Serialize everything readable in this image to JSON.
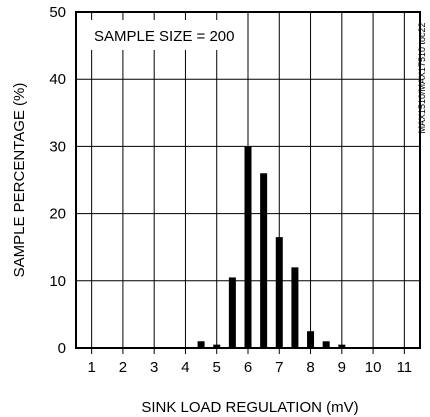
{
  "chart_data": {
    "type": "bar",
    "xlabel": "SINK LOAD REGULATION (mV)",
    "ylabel": "SAMPLE PERCENTAGE (%)",
    "annotation": "SAMPLE SIZE = 200",
    "side_label": "MAX1510/MAX17510 toc22",
    "xlim": [
      0.5,
      11.5
    ],
    "ylim": [
      0,
      50
    ],
    "xticks": [
      "1",
      "2",
      "3",
      "4",
      "5",
      "6",
      "7",
      "8",
      "9",
      "10",
      "11"
    ],
    "yticks": [
      "0",
      "10",
      "20",
      "30",
      "40",
      "50"
    ],
    "grid": true,
    "bar_color": "#000000",
    "bars": [
      {
        "x": 4.5,
        "value": 1.0
      },
      {
        "x": 5.0,
        "value": 0.5
      },
      {
        "x": 5.5,
        "value": 10.5
      },
      {
        "x": 6.0,
        "value": 30.0
      },
      {
        "x": 6.5,
        "value": 26.0
      },
      {
        "x": 7.0,
        "value": 16.5
      },
      {
        "x": 7.5,
        "value": 12.0
      },
      {
        "x": 8.0,
        "value": 2.5
      },
      {
        "x": 8.5,
        "value": 1.0
      },
      {
        "x": 9.0,
        "value": 0.5
      }
    ]
  }
}
